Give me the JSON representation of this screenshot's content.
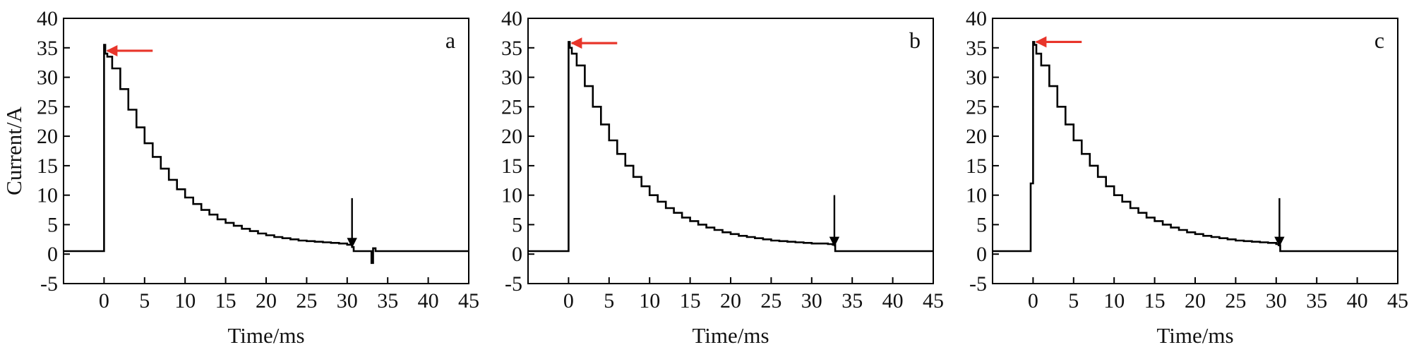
{
  "chart_data": [
    {
      "type": "line",
      "panel_label": "a",
      "xlabel": "Time/ms",
      "ylabel": "Current/A",
      "xlim": [
        -5,
        45
      ],
      "ylim": [
        -5,
        40
      ],
      "x_ticks": [
        0,
        5,
        10,
        15,
        20,
        25,
        30,
        35,
        40,
        45
      ],
      "y_ticks": [
        -5,
        0,
        5,
        10,
        15,
        20,
        25,
        30,
        35,
        40
      ],
      "grid": false,
      "line_color": "#000000",
      "series": [
        {
          "x": [
            -5,
            -0.2,
            0,
            0.15,
            0.4,
            1,
            2,
            3,
            4,
            5,
            6,
            7,
            8,
            9,
            10,
            11,
            12,
            13,
            14,
            15,
            16,
            17,
            18,
            19,
            20,
            21,
            22,
            23,
            24,
            25,
            26,
            27,
            28,
            29,
            30,
            30.6,
            30.8,
            32.5,
            33.0,
            33.2,
            33.5,
            35,
            40,
            45
          ],
          "y": [
            0.5,
            0.5,
            35.5,
            34.0,
            33.5,
            31.5,
            28,
            24.5,
            21.5,
            18.8,
            16.5,
            14.5,
            12.6,
            11,
            9.6,
            8.5,
            7.5,
            6.7,
            5.9,
            5.3,
            4.8,
            4.3,
            3.9,
            3.5,
            3.2,
            2.9,
            2.7,
            2.5,
            2.3,
            2.2,
            2.1,
            2.0,
            1.9,
            1.8,
            1.6,
            1.2,
            0.5,
            0.5,
            -1.5,
            1.0,
            0.5,
            0.5,
            0.5,
            0.5
          ]
        }
      ],
      "annotations": [
        {
          "type": "arrow",
          "color": "#e8352a",
          "from": [
            6,
            34.5
          ],
          "to": [
            0.4,
            34.5
          ]
        },
        {
          "type": "arrow",
          "color": "#000000",
          "from": [
            30.6,
            9.5
          ],
          "to": [
            30.6,
            1.2
          ]
        }
      ]
    },
    {
      "type": "line",
      "panel_label": "b",
      "xlabel": "Time/ms",
      "ylabel": "",
      "xlim": [
        -5,
        45
      ],
      "ylim": [
        -5,
        40
      ],
      "x_ticks": [
        0,
        5,
        10,
        15,
        20,
        25,
        30,
        35,
        40,
        45
      ],
      "y_ticks": [
        -5,
        0,
        5,
        10,
        15,
        20,
        25,
        30,
        35,
        40
      ],
      "grid": false,
      "line_color": "#000000",
      "series": [
        {
          "x": [
            -5,
            -0.2,
            0,
            0.15,
            0.4,
            1,
            2,
            3,
            4,
            5,
            6,
            7,
            8,
            9,
            10,
            11,
            12,
            13,
            14,
            15,
            16,
            17,
            18,
            19,
            20,
            21,
            22,
            23,
            24,
            25,
            26,
            27,
            28,
            29,
            30,
            31,
            32,
            32.6,
            32.9,
            35,
            40,
            45
          ],
          "y": [
            0.5,
            0.5,
            36.0,
            35.0,
            34.0,
            32,
            28.5,
            25,
            22,
            19.3,
            17,
            15,
            13.1,
            11.5,
            10,
            8.9,
            7.8,
            7.0,
            6.2,
            5.6,
            5.0,
            4.5,
            4.1,
            3.7,
            3.4,
            3.1,
            2.9,
            2.7,
            2.5,
            2.3,
            2.2,
            2.1,
            2.0,
            1.9,
            1.8,
            1.8,
            1.7,
            1.6,
            0.5,
            0.5,
            0.5,
            0.5
          ]
        }
      ],
      "annotations": [
        {
          "type": "arrow",
          "color": "#e8352a",
          "from": [
            6,
            35.8
          ],
          "to": [
            0.4,
            35.8
          ]
        },
        {
          "type": "arrow",
          "color": "#000000",
          "from": [
            32.8,
            10
          ],
          "to": [
            32.8,
            1.4
          ]
        }
      ]
    },
    {
      "type": "line",
      "panel_label": "c",
      "xlabel": "Time/ms",
      "ylabel": "",
      "xlim": [
        -5,
        45
      ],
      "ylim": [
        -5,
        40
      ],
      "x_ticks": [
        0,
        5,
        10,
        15,
        20,
        25,
        30,
        35,
        40,
        45
      ],
      "y_ticks": [
        -5,
        0,
        5,
        10,
        15,
        20,
        25,
        30,
        35,
        40
      ],
      "grid": false,
      "line_color": "#000000",
      "series": [
        {
          "x": [
            -5,
            -0.5,
            -0.3,
            0,
            0.15,
            0.4,
            1,
            2,
            3,
            4,
            5,
            6,
            7,
            8,
            9,
            10,
            11,
            12,
            13,
            14,
            15,
            16,
            17,
            18,
            19,
            20,
            21,
            22,
            23,
            24,
            25,
            26,
            27,
            28,
            29,
            30,
            30.3,
            30.5,
            35,
            40,
            45
          ],
          "y": [
            0.5,
            0.5,
            12,
            36.0,
            35.5,
            34.0,
            32,
            28.5,
            25,
            22,
            19.3,
            17,
            15,
            13.1,
            11.5,
            10,
            8.9,
            7.8,
            7.0,
            6.2,
            5.6,
            5.0,
            4.5,
            4.1,
            3.7,
            3.4,
            3.1,
            2.9,
            2.7,
            2.5,
            2.3,
            2.2,
            2.1,
            2.0,
            1.9,
            1.7,
            1.5,
            0.5,
            0.5,
            0.5,
            0.5
          ]
        }
      ],
      "annotations": [
        {
          "type": "arrow",
          "color": "#e8352a",
          "from": [
            6,
            36.0
          ],
          "to": [
            0.4,
            36.0
          ]
        },
        {
          "type": "arrow",
          "color": "#000000",
          "from": [
            30.4,
            9.5
          ],
          "to": [
            30.4,
            1.4
          ]
        }
      ]
    }
  ]
}
